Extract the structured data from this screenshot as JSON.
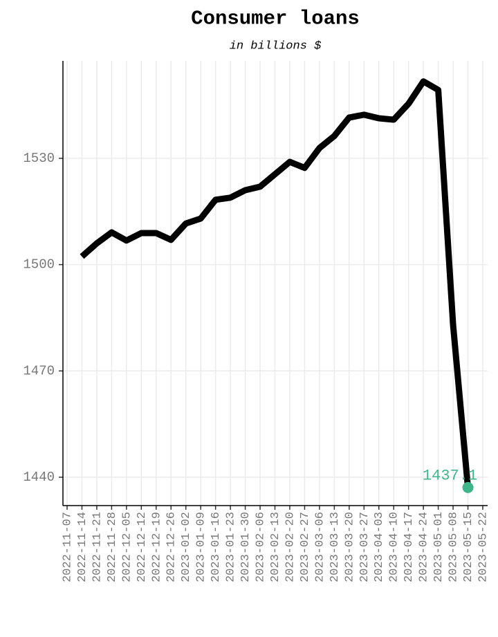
{
  "chart_data": {
    "type": "line",
    "title": "Consumer loans",
    "subtitle": "in billions $",
    "x": [
      "2022-11-14",
      "2022-11-21",
      "2022-11-28",
      "2022-12-05",
      "2022-12-12",
      "2022-12-19",
      "2022-12-26",
      "2023-01-02",
      "2023-01-09",
      "2023-01-16",
      "2023-01-23",
      "2023-01-30",
      "2023-02-06",
      "2023-02-13",
      "2023-02-20",
      "2023-02-27",
      "2023-03-06",
      "2023-03-13",
      "2023-03-20",
      "2023-03-27",
      "2023-04-03",
      "2023-04-10",
      "2023-04-17",
      "2023-04-24",
      "2023-05-01",
      "2023-05-08",
      "2023-05-15"
    ],
    "series": [
      {
        "color": "#000000",
        "values": [
          1502.3,
          1506.0,
          1509.1,
          1506.8,
          1508.9,
          1508.9,
          1507.0,
          1511.6,
          1513.0,
          1518.3,
          1518.9,
          1521.0,
          1522.0,
          1525.5,
          1529.0,
          1527.3,
          1532.9,
          1536.3,
          1541.5,
          1542.3,
          1541.3,
          1540.9,
          1545.4,
          1551.7,
          1549.3,
          1483.0,
          1437.1
        ]
      }
    ],
    "last_point_color": "#3fb58a",
    "ylim": [
      1432.0,
      1557.5
    ],
    "yticks": [
      1440,
      1470,
      1500,
      1530
    ],
    "xticks": [
      "2022-11-07",
      "2022-11-14",
      "2022-11-21",
      "2022-11-28",
      "2022-12-05",
      "2022-12-12",
      "2022-12-19",
      "2022-12-26",
      "2023-01-02",
      "2023-01-09",
      "2023-01-16",
      "2023-01-23",
      "2023-01-30",
      "2023-02-06",
      "2023-02-13",
      "2023-02-20",
      "2023-02-27",
      "2023-03-06",
      "2023-03-13",
      "2023-03-20",
      "2023-03-27",
      "2023-04-03",
      "2023-04-10",
      "2023-04-17",
      "2023-04-24",
      "2023-05-01",
      "2023-05-08",
      "2023-05-15",
      "2023-05-22"
    ],
    "grid": true
  }
}
